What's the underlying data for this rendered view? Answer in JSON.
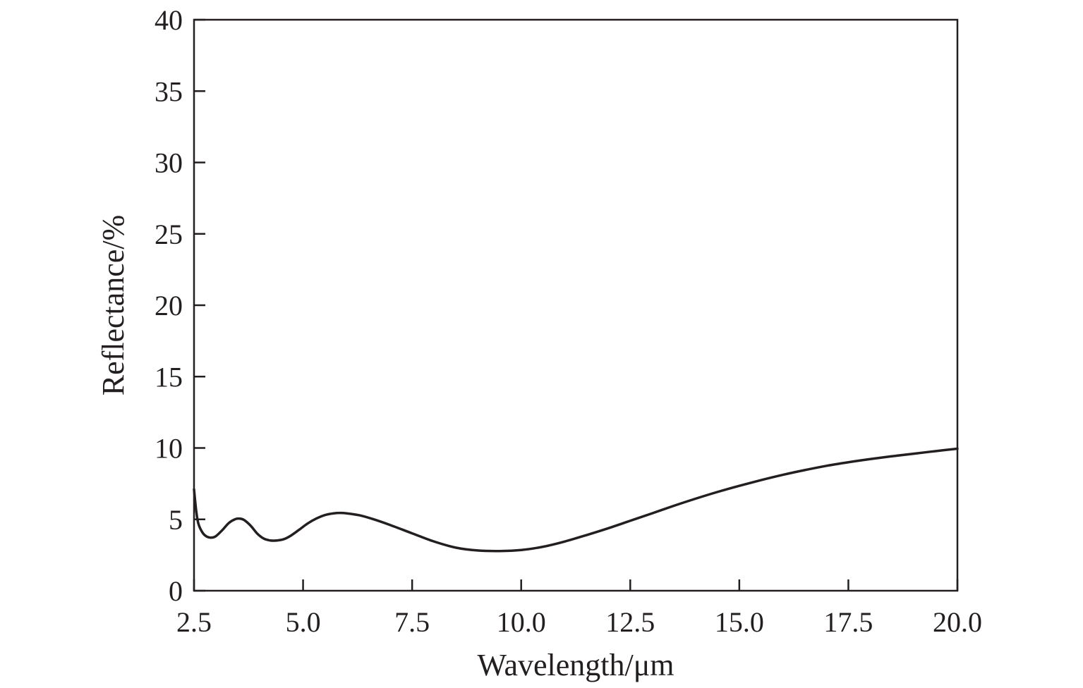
{
  "chart_data": {
    "type": "line",
    "title": "",
    "xlabel": "Wavelength/μm",
    "ylabel": "Reflectance/%",
    "xlim": [
      2.5,
      20.0
    ],
    "ylim": [
      0,
      40
    ],
    "x_ticks": [
      2.5,
      5.0,
      7.5,
      10.0,
      12.5,
      15.0,
      17.5,
      20.0
    ],
    "x_tick_labels": [
      "2.5",
      "5.0",
      "7.5",
      "10.0",
      "12.5",
      "15.0",
      "17.5",
      "20.0"
    ],
    "y_ticks": [
      0,
      5,
      10,
      15,
      20,
      25,
      30,
      35,
      40
    ],
    "y_tick_labels": [
      "0",
      "5",
      "10",
      "15",
      "20",
      "25",
      "30",
      "35",
      "40"
    ],
    "grid": false,
    "legend": false,
    "colors": {
      "line": "#231f20",
      "axis": "#231f20",
      "text": "#231f20"
    },
    "series": [
      {
        "x": [
          2.5,
          2.55,
          2.6,
          2.7,
          2.8,
          2.9,
          3.0,
          3.15,
          3.3,
          3.45,
          3.55,
          3.65,
          3.8,
          3.95,
          4.1,
          4.25,
          4.4,
          4.55,
          4.7,
          4.9,
          5.1,
          5.3,
          5.5,
          5.7,
          5.85,
          6.0,
          6.3,
          6.6,
          7.0,
          7.5,
          8.0,
          8.5,
          9.0,
          9.5,
          10.0,
          10.5,
          11.0,
          11.5,
          12.0,
          12.5,
          13.0,
          13.5,
          14.0,
          14.5,
          15.0,
          15.5,
          16.0,
          16.5,
          17.0,
          17.5,
          18.0,
          18.5,
          19.0,
          19.5,
          20.0
        ],
        "values": [
          7.1,
          5.6,
          4.7,
          4.05,
          3.78,
          3.72,
          3.82,
          4.25,
          4.75,
          5.02,
          5.05,
          4.95,
          4.55,
          4.0,
          3.65,
          3.52,
          3.52,
          3.6,
          3.82,
          4.25,
          4.7,
          5.05,
          5.3,
          5.42,
          5.45,
          5.42,
          5.28,
          5.02,
          4.6,
          4.02,
          3.45,
          3.02,
          2.82,
          2.78,
          2.85,
          3.08,
          3.45,
          3.9,
          4.38,
          4.9,
          5.42,
          5.95,
          6.45,
          6.92,
          7.35,
          7.75,
          8.12,
          8.45,
          8.75,
          9.0,
          9.22,
          9.42,
          9.6,
          9.78,
          9.95
        ]
      }
    ]
  }
}
